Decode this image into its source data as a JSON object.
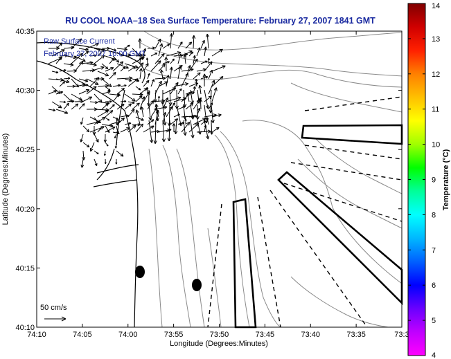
{
  "title": "RU COOL  NOAA–18  Sea Surface Temperature:  February 27, 2007 1841 GMT",
  "legend": {
    "line1": "Raw Surface Current",
    "line2": "February 27, 2007 16:00 GMT"
  },
  "scale_label": "50 cm/s",
  "x_axis": {
    "label": "Longitude (Degrees:Minutes)",
    "ticks": [
      "74:10",
      "74:05",
      "74:00",
      "73:55",
      "73:50",
      "73:45",
      "73:40",
      "73:35",
      "73:3"
    ]
  },
  "y_axis": {
    "label": "Latitude (Degrees:Minutes)",
    "ticks": [
      "40:35",
      "40:30",
      "40:25",
      "40:20",
      "40:15",
      "40:10"
    ]
  },
  "colorbar": {
    "label": "Temperature (°C)",
    "ticks": [
      "14",
      "13",
      "12",
      "11",
      "10",
      "9",
      "8",
      "7",
      "6",
      "5",
      "4"
    ],
    "range": [
      4,
      14
    ],
    "colors": [
      "#ff00ff",
      "#c000ff",
      "#6a00ff",
      "#0000ff",
      "#0060ff",
      "#00b8ff",
      "#00ffff",
      "#00ff99",
      "#00ff00",
      "#a0ff00",
      "#ffff00",
      "#ffc000",
      "#ff8000",
      "#ff2000",
      "#d00000",
      "#800000"
    ]
  },
  "colors": {
    "title": "#1a2aa0",
    "land": "#ffffff",
    "contour": "#8a8a8a",
    "coastline": "#000000"
  }
}
